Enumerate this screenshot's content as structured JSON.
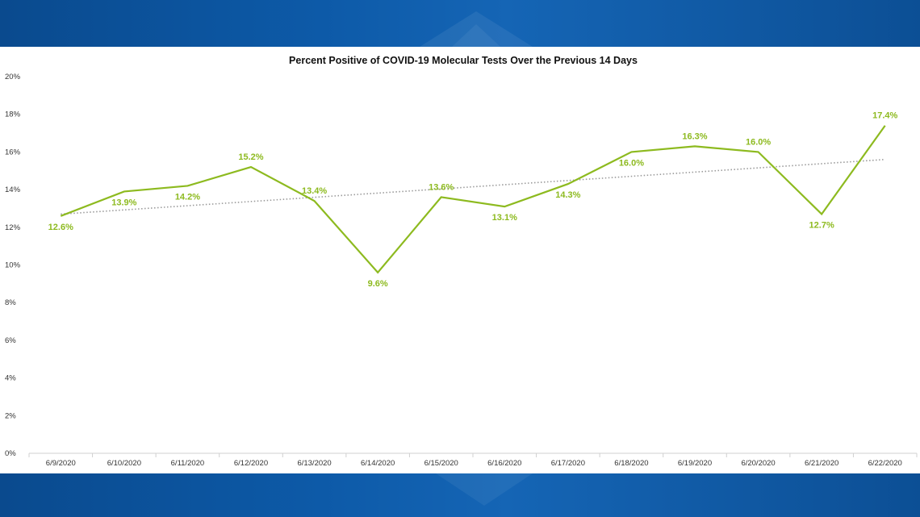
{
  "chart_data": {
    "type": "line",
    "title": "Percent Positive of COVID-19 Molecular Tests Over the Previous 14 Days",
    "xlabel": "",
    "ylabel": "",
    "categories": [
      "6/9/2020",
      "6/10/2020",
      "6/11/2020",
      "6/12/2020",
      "6/13/2020",
      "6/14/2020",
      "6/15/2020",
      "6/16/2020",
      "6/17/2020",
      "6/18/2020",
      "6/19/2020",
      "6/20/2020",
      "6/21/2020",
      "6/22/2020"
    ],
    "series": [
      {
        "values": [
          12.6,
          13.9,
          14.2,
          15.2,
          13.4,
          9.6,
          13.6,
          13.1,
          14.3,
          16.0,
          16.3,
          16.0,
          12.7,
          17.4
        ],
        "data_labels": [
          "12.6%",
          "13.9%",
          "14.2%",
          "15.2%",
          "13.4%",
          "9.6%",
          "13.6%",
          "13.1%",
          "14.3%",
          "16.0%",
          "16.3%",
          "16.0%",
          "12.7%",
          "17.4%"
        ],
        "color": "#8dba1f"
      }
    ],
    "trendline": {
      "style": "dotted",
      "color": "#9a9a9a",
      "start": 12.7,
      "end": 15.6
    },
    "ylim": [
      0,
      20
    ],
    "yticks": [
      0,
      2,
      4,
      6,
      8,
      10,
      12,
      14,
      16,
      18,
      20
    ],
    "ytick_labels": [
      "0%",
      "2%",
      "4%",
      "6%",
      "8%",
      "10%",
      "12%",
      "14%",
      "16%",
      "18%",
      "20%"
    ],
    "grid": false,
    "legend": "none"
  },
  "theme": {
    "band_color": "#0d5aa8",
    "line_color": "#8dba1f",
    "axis_color": "#d0d0d0"
  }
}
